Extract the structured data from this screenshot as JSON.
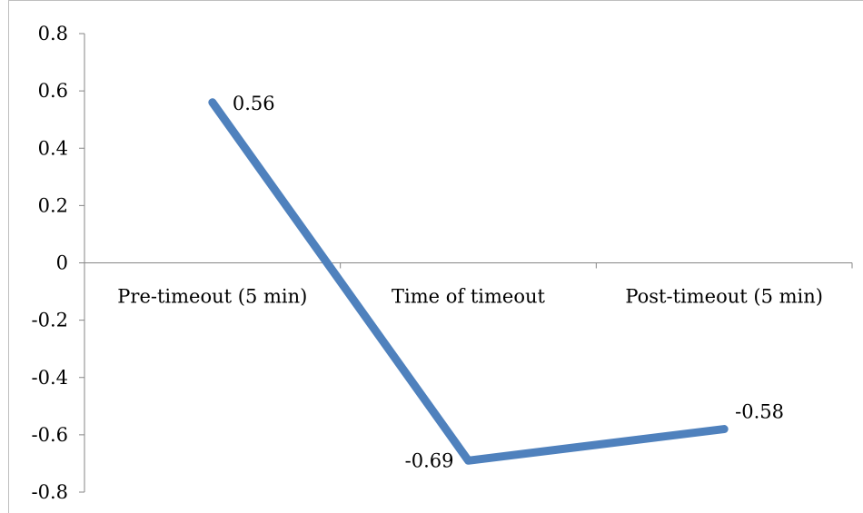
{
  "chart_data": {
    "type": "line",
    "categories": [
      "Pre-timeout (5 min)",
      "Time of timeout",
      "Post-timeout (5 min)"
    ],
    "series": [
      {
        "values": [
          0.56,
          -0.69,
          -0.58
        ],
        "color": "#4f81bd"
      }
    ],
    "data_labels": [
      "0.56",
      "-0.69",
      "-0.58"
    ],
    "ylim": [
      -0.8,
      0.8
    ],
    "yticks": [
      0.8,
      0.6,
      0.4,
      0.2,
      0,
      -0.2,
      -0.4,
      -0.6,
      -0.8
    ],
    "ytick_labels": [
      "0.8",
      "0.6",
      "0.4",
      "0.2",
      "0",
      "-0.2",
      "-0.4",
      "-0.6",
      "-0.8"
    ],
    "title": "",
    "xlabel": "",
    "ylabel": "",
    "grid": false,
    "legend": "none"
  }
}
